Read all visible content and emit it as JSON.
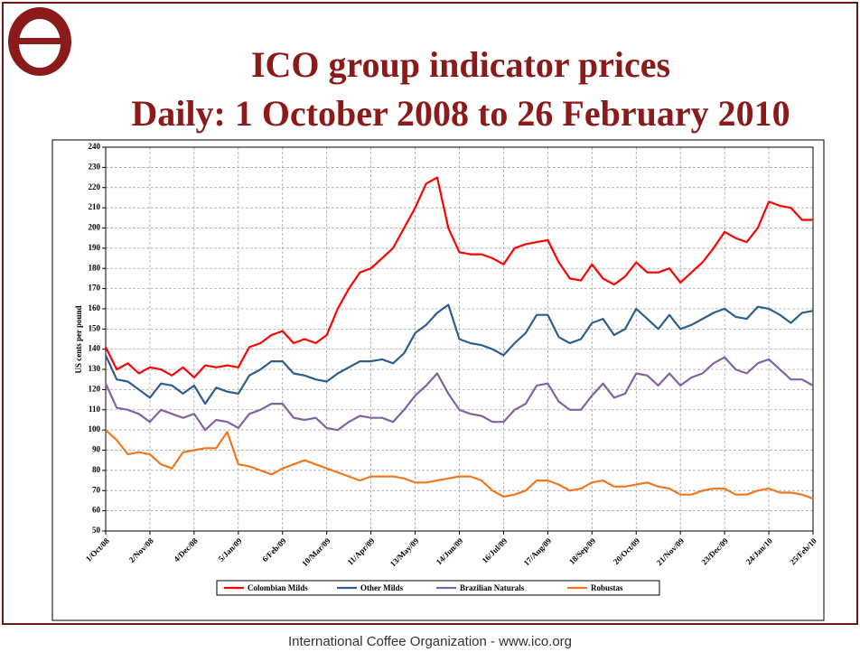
{
  "chart_data": {
    "type": "line",
    "title": "ICO group indicator prices",
    "subtitle": "Daily:  1 October 2008 to 26 February 2010",
    "y_label": "US cents per pound",
    "footer": "International Coffee Organization  -  www.ico.org",
    "categories": [
      "1/Oct/08",
      null,
      null,
      null,
      "2/Nov/08",
      null,
      null,
      null,
      "4/Dec/08",
      null,
      null,
      null,
      "5/Jan/09",
      null,
      null,
      null,
      "6/Feb/09",
      null,
      null,
      null,
      "10/Mar/09",
      null,
      null,
      null,
      "11/Apr/09",
      null,
      null,
      null,
      "13/May/09",
      null,
      null,
      null,
      "14/Jun/09",
      null,
      null,
      null,
      "16/Jul/09",
      null,
      null,
      null,
      "17/Aug/09",
      null,
      null,
      null,
      "18/Sep/09",
      null,
      null,
      null,
      "20/Oct/09",
      null,
      null,
      null,
      "21/Nov/09",
      null,
      null,
      null,
      "23/Dec/09",
      null,
      null,
      null,
      "24/Jan/10",
      null,
      null,
      null,
      "25/Feb/10"
    ],
    "series": [
      {
        "name": "Colombian Milds",
        "color": "#ff0000",
        "values": [
          141,
          130,
          133,
          128,
          131,
          130,
          127,
          131,
          126,
          132,
          131,
          132,
          131,
          141,
          143,
          147,
          149,
          143,
          145,
          143,
          147,
          160,
          170,
          178,
          180,
          185,
          190,
          200,
          210,
          222,
          225,
          200,
          188,
          187,
          187,
          185,
          182,
          190,
          192,
          193,
          194,
          183,
          175,
          174,
          182,
          175,
          172,
          176,
          183,
          178,
          178,
          180,
          173,
          178,
          183,
          190,
          198,
          195,
          193,
          200,
          213,
          211,
          210,
          204,
          204
        ]
      },
      {
        "name": "Other Milds",
        "color": "#2e5e8e",
        "values": [
          137,
          125,
          124,
          120,
          116,
          123,
          122,
          118,
          122,
          113,
          121,
          119,
          118,
          127,
          130,
          134,
          134,
          128,
          127,
          125,
          124,
          128,
          131,
          134,
          134,
          135,
          133,
          138,
          148,
          152,
          158,
          162,
          145,
          143,
          142,
          140,
          137,
          143,
          148,
          157,
          157,
          146,
          143,
          145,
          153,
          155,
          147,
          150,
          160,
          155,
          150,
          157,
          150,
          152,
          155,
          158,
          160,
          156,
          155,
          161,
          160,
          157,
          153,
          158,
          159
        ]
      },
      {
        "name": "Brazilian Naturals",
        "color": "#8064a2",
        "values": [
          123,
          111,
          110,
          108,
          104,
          110,
          108,
          106,
          108,
          100,
          105,
          104,
          101,
          108,
          110,
          113,
          113,
          106,
          105,
          106,
          101,
          100,
          104,
          107,
          106,
          106,
          104,
          110,
          117,
          122,
          128,
          118,
          110,
          108,
          107,
          104,
          104,
          110,
          113,
          122,
          123,
          114,
          110,
          110,
          117,
          123,
          116,
          118,
          128,
          127,
          122,
          128,
          122,
          126,
          128,
          133,
          136,
          130,
          128,
          133,
          135,
          130,
          125,
          125,
          122
        ]
      },
      {
        "name": "Robustas",
        "color": "#f07820",
        "values": [
          100,
          95,
          88,
          89,
          88,
          83,
          81,
          89,
          90,
          91,
          91,
          99,
          83,
          82,
          80,
          78,
          81,
          83,
          85,
          83,
          81,
          79,
          77,
          75,
          77,
          77,
          77,
          76,
          74,
          74,
          75,
          76,
          77,
          77,
          75,
          70,
          67,
          68,
          70,
          75,
          75,
          73,
          70,
          71,
          74,
          75,
          72,
          72,
          73,
          74,
          72,
          71,
          68,
          68,
          70,
          71,
          71,
          68,
          68,
          70,
          71,
          69,
          69,
          68,
          66
        ]
      }
    ],
    "ylim": [
      50,
      240
    ],
    "yticks": [
      50,
      60,
      70,
      80,
      90,
      100,
      110,
      120,
      130,
      140,
      150,
      160,
      170,
      180,
      190,
      200,
      210,
      220,
      230,
      240
    ],
    "grid": true,
    "legend": "bottom"
  }
}
